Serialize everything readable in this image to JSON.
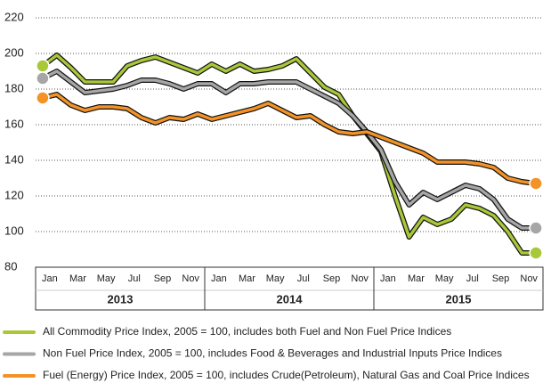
{
  "chart_data": {
    "type": "line",
    "categories": [
      "Jan",
      null,
      "Mar",
      null,
      "May",
      null,
      "Jul",
      null,
      "Sep",
      null,
      "Nov",
      null,
      "Jan",
      null,
      "Mar",
      null,
      "May",
      null,
      "Jul",
      null,
      "Sep",
      null,
      "Nov",
      null,
      "Jan",
      null,
      "Mar",
      null,
      "May",
      null,
      "Jul",
      null,
      "Sep",
      null,
      "Nov",
      null
    ],
    "year_labels": [
      "2013",
      "2014",
      "2015"
    ],
    "series": [
      {
        "name": "All Commodity Price Index, 2005 = 100, includes both Fuel and Non Fuel Price Indices",
        "color": "#a8c83a",
        "values": [
          193,
          199,
          192,
          184,
          184,
          184,
          193,
          196,
          198,
          195,
          192,
          189,
          194,
          190,
          194,
          190,
          191,
          193,
          197,
          189,
          181,
          177,
          165,
          155,
          145,
          120,
          97,
          108,
          104,
          107,
          115,
          113,
          109,
          100,
          88,
          88
        ]
      },
      {
        "name": "Non Fuel Price Index, 2005 = 100, includes Food & Beverages and Industrial Inputs Price Indices",
        "color": "#a6a6a6",
        "values": [
          186,
          190,
          184,
          178,
          179,
          180,
          182,
          185,
          185,
          183,
          180,
          183,
          183,
          178,
          183,
          183,
          184,
          184,
          184,
          180,
          176,
          172,
          165,
          156,
          146,
          128,
          115,
          122,
          118,
          122,
          126,
          124,
          118,
          107,
          102,
          102
        ]
      },
      {
        "name": "Fuel (Energy) Price Index, 2005 = 100, includes Crude(Petroleum), Natural Gas and Coal Price Indices",
        "color": "#f39327",
        "values": [
          175,
          177,
          171,
          168,
          170,
          170,
          169,
          164,
          161,
          164,
          163,
          166,
          163,
          165,
          167,
          169,
          172,
          168,
          164,
          165,
          160,
          156,
          155,
          156,
          153,
          150,
          147,
          144,
          139,
          139,
          139,
          138,
          136,
          130,
          128,
          127
        ]
      }
    ],
    "ylim": [
      80,
      220
    ],
    "yticks": [
      80,
      100,
      120,
      140,
      160,
      180,
      200,
      220
    ],
    "grid": true
  }
}
